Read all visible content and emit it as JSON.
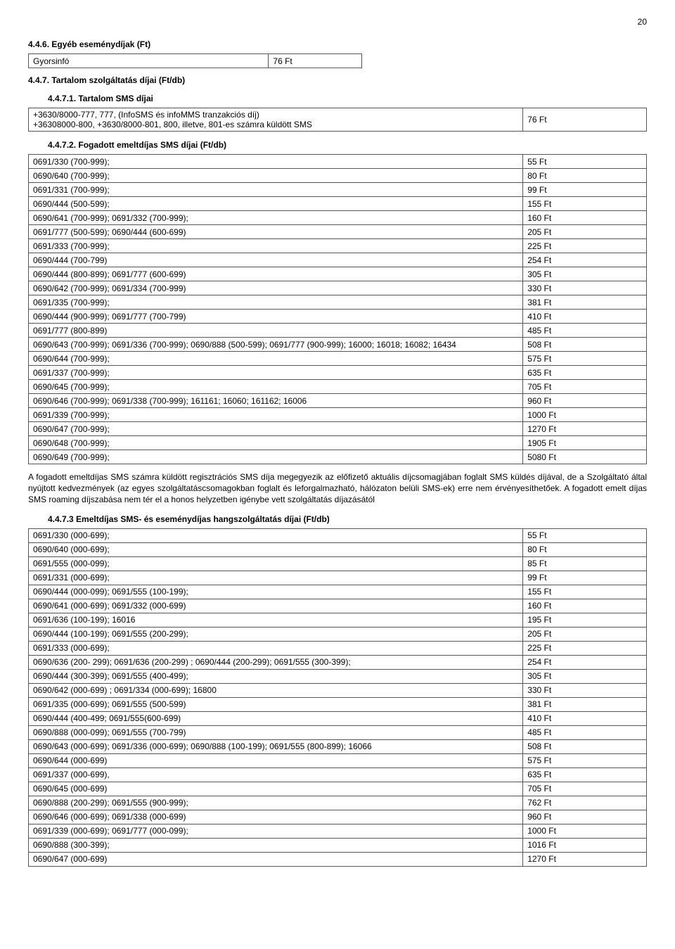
{
  "page_number": "20",
  "section446": {
    "title": "4.4.6. Egyéb eseménydíjak (Ft)",
    "rows": [
      {
        "label": "Gyorsinfó",
        "value": "76 Ft"
      }
    ]
  },
  "section447": {
    "title": "4.4.7. Tartalom szolgáltatás díjai (Ft/db)"
  },
  "section4471": {
    "title": "4.4.7.1. Tartalom SMS díjai",
    "rows": [
      {
        "label": "+3630/8000-777, 777, (InfoSMS és infoMMS tranzakciós díj)\n+36308000-800, +3630/8000-801, 800, illetve, 801-es számra küldött SMS",
        "value": "76 Ft"
      }
    ]
  },
  "section4472": {
    "title": "4.4.7.2. Fogadott emeltdíjas SMS díjai (Ft/db)",
    "rows": [
      {
        "label": "0691/330 (700-999);",
        "value": "55 Ft"
      },
      {
        "label": "0690/640 (700-999);",
        "value": "80  Ft"
      },
      {
        "label": "0691/331 (700-999);",
        "value": "99 Ft"
      },
      {
        "label": "0690/444 (500-599);",
        "value": "155 Ft"
      },
      {
        "label": "0690/641 (700-999); 0691/332 (700-999);",
        "value": "160 Ft"
      },
      {
        "label": "0691/777 (500-599); 0690/444 (600-699)",
        "value": "205 Ft"
      },
      {
        "label": "0691/333 (700-999);",
        "value": "225 Ft"
      },
      {
        "label": "0690/444 (700-799)",
        "value": "254 Ft"
      },
      {
        "label": "0690/444 (800-899); 0691/777 (600-699)",
        "value": "305 Ft"
      },
      {
        "label": "0690/642 (700-999); 0691/334 (700-999)",
        "value": "330 Ft"
      },
      {
        "label": "0691/335 (700-999);",
        "value": "381 Ft"
      },
      {
        "label": "0690/444 (900-999); 0691/777 (700-799)",
        "value": "410 Ft"
      },
      {
        "label": "0691/777 (800-899)",
        "value": "485 Ft"
      },
      {
        "label": "0690/643 (700-999); 0691/336 (700-999); 0690/888 (500-599); 0691/777 (900-999); 16000; 16018; 16082; 16434",
        "value": "508 Ft"
      },
      {
        "label": "0690/644 (700-999);",
        "value": "575 Ft"
      },
      {
        "label": "0691/337 (700-999);",
        "value": "635 Ft"
      },
      {
        "label": "0690/645 (700-999);",
        "value": "705 Ft"
      },
      {
        "label": "0690/646 (700-999); 0691/338 (700-999); 161161; 16060; 161162; 16006",
        "value": "960 Ft"
      },
      {
        "label": "0691/339 (700-999);",
        "value": "1000 Ft"
      },
      {
        "label": "0690/647 (700-999);",
        "value": "1270 Ft"
      },
      {
        "label": "0690/648 (700-999);",
        "value": "1905 Ft"
      },
      {
        "label": "0690/649 (700-999);",
        "value": "5080 Ft"
      }
    ],
    "note": "A fogadott emeltdíjas SMS számra küldött regisztrációs SMS díja megegyezik az előfizető aktuális díjcsomagjában foglalt SMS küldés díjával, de a Szolgáltató által nyújtott kedvezmények (az egyes szolgáltatáscsomagokban foglalt és leforgalmazható, hálózaton belüli SMS-ek) erre nem érvényesíthetőek. A fogadott emelt díjas SMS roaming díjszabása nem tér el a honos helyzetben igénybe vett szolgáltatás díjazásától"
  },
  "section4473": {
    "title": "4.4.7.3 Emeltdíjas SMS- és eseménydíjas hangszolgáltatás díjai (Ft/db)",
    "rows": [
      {
        "label": "0691/330 (000-699);",
        "value": "55 Ft"
      },
      {
        "label": "0690/640 (000-699);",
        "value": "80 Ft"
      },
      {
        "label": "0691/555 (000-099);",
        "value": "85 Ft"
      },
      {
        "label": "0691/331 (000-699);",
        "value": "99 Ft"
      },
      {
        "label": "0690/444 (000-099); 0691/555 (100-199);",
        "value": "155 Ft"
      },
      {
        "label": "0690/641 (000-699); 0691/332 (000-699)",
        "value": "160 Ft"
      },
      {
        "label": "0691/636 (100-199); 16016",
        "value": "195 Ft"
      },
      {
        "label": "0690/444 (100-199); 0691/555 (200-299);",
        "value": "205 Ft"
      },
      {
        "label": "0691/333 (000-699);",
        "value": "225 Ft"
      },
      {
        "label": "0690/636 (200- 299); 0691/636 (200-299) ; 0690/444 (200-299); 0691/555 (300-399);",
        "value": "254 Ft"
      },
      {
        "label": "0690/444 (300-399);  0691/555 (400-499);",
        "value": "305 Ft"
      },
      {
        "label": "0690/642 (000-699) ; 0691/334 (000-699); 16800",
        "value": "330 Ft"
      },
      {
        "label": "0691/335 (000-699); 0691/555 (500-599)",
        "value": "381 Ft"
      },
      {
        "label": "0690/444 (400-499; 0691/555(600-699)",
        "value": "410 Ft"
      },
      {
        "label": "0690/888 (000-099); 0691/555 (700-799)",
        "value": "485 Ft"
      },
      {
        "label": "0690/643 (000-699); 0691/336 (000-699); 0690/888 (100-199); 0691/555 (800-899); 16066",
        "value": "508 Ft"
      },
      {
        "label": "0690/644 (000-699)",
        "value": "575 Ft"
      },
      {
        "label": "0691/337 (000-699),",
        "value": "635 Ft"
      },
      {
        "label": "0690/645 (000-699)",
        "value": "705 Ft"
      },
      {
        "label": "0690/888 (200-299); 0691/555 (900-999);",
        "value": "762 Ft"
      },
      {
        "label": "0690/646 (000-699); 0691/338 (000-699)",
        "value": "960 Ft"
      },
      {
        "label": "0691/339 (000-699);  0691/777 (000-099);",
        "value": "1000 Ft"
      },
      {
        "label": "0690/888 (300-399);",
        "value": "1016 Ft"
      },
      {
        "label": "0690/647 (000-699)",
        "value": "1270 Ft"
      }
    ]
  }
}
